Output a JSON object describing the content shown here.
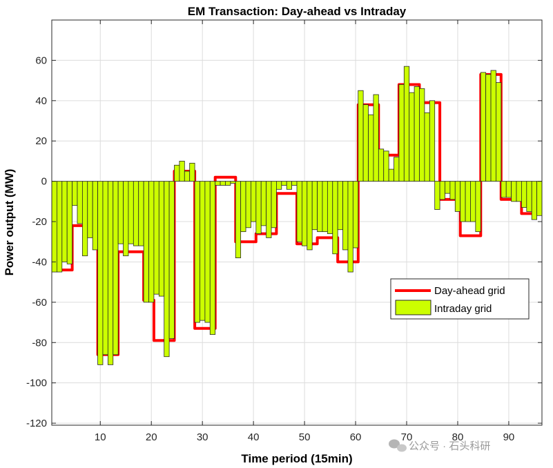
{
  "chart_data": {
    "type": "bar",
    "title": "EM Transaction: Day-ahead vs Intraday",
    "xlabel": "Time period (15min)",
    "ylabel": "Power output (MW)",
    "xlim": [
      0.5,
      96.5
    ],
    "ylim": [
      -121,
      80
    ],
    "xticks": [
      10,
      20,
      30,
      40,
      50,
      60,
      70,
      80,
      90
    ],
    "yticks": [
      -120,
      -100,
      -80,
      -60,
      -40,
      -20,
      0,
      20,
      40,
      60
    ],
    "grid": true,
    "legend_position": "lower-right",
    "series": [
      {
        "name": "Day-ahead grid",
        "type": "stairs",
        "color": "#ff0000",
        "values": [
          -44,
          -44,
          -44,
          -44,
          -22,
          -22,
          -22,
          -22,
          -22,
          -86,
          -86,
          -86,
          -86,
          -35,
          -35,
          -35,
          -35,
          -35,
          -59,
          -59,
          -79,
          -79,
          -79,
          -79,
          5,
          5,
          5,
          5,
          -73,
          -73,
          -73,
          -73,
          2,
          2,
          2,
          2,
          -30,
          -30,
          -30,
          -30,
          -26,
          -26,
          -26,
          -26,
          -6,
          -6,
          -6,
          -6,
          -31,
          -31,
          -31,
          -31,
          -28,
          -28,
          -28,
          -28,
          -40,
          -40,
          -40,
          -40,
          38,
          38,
          38,
          38,
          13,
          13,
          13,
          13,
          48,
          48,
          48,
          48,
          39,
          39,
          39,
          39,
          -9,
          -9,
          -9,
          -9,
          -27,
          -27,
          -27,
          -27,
          53,
          53,
          53,
          53,
          -9,
          -9,
          -9,
          -9,
          -16,
          -16,
          -16,
          -16
        ]
      },
      {
        "name": "Intraday grid",
        "type": "bar",
        "color": "#ccff00",
        "values": [
          -45,
          -45,
          -40,
          -41,
          -12,
          -21,
          -37,
          -28,
          -34,
          -91,
          -86,
          -91,
          -86,
          -31,
          -37,
          -31,
          -32,
          -32,
          -60,
          -60,
          -56,
          -57,
          -87,
          -78,
          8,
          10,
          5,
          9,
          -70,
          -69,
          -70,
          -76,
          -2,
          -2,
          -2,
          -1,
          -38,
          -25,
          -23,
          -20,
          -26,
          -22,
          -28,
          -23,
          -4,
          -2,
          -4,
          -2,
          -30,
          -32,
          -34,
          -24,
          -25,
          -25,
          -26,
          -36,
          -24,
          -34,
          -45,
          -33,
          45,
          38,
          33,
          43,
          16,
          15,
          6,
          12,
          48,
          57,
          44,
          47,
          46,
          34,
          40,
          -14,
          -9,
          -6,
          -9,
          -15,
          -20,
          -20,
          -20,
          -25,
          54,
          53,
          55,
          49,
          -8,
          -8,
          -10,
          -10,
          -13,
          -15,
          -19,
          -17
        ]
      }
    ]
  },
  "watermark": "公众号 · 石头科研"
}
